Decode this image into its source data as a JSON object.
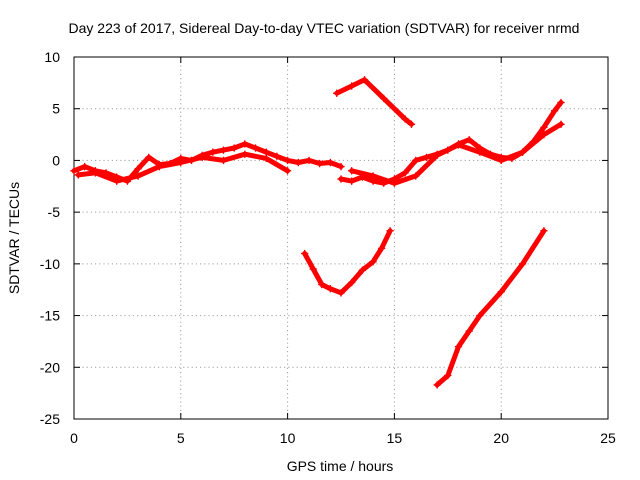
{
  "chart_data": {
    "type": "scatter",
    "title": "Day 223 of 2017, Sidereal Day-to-day VTEC variation (SDTVAR) for receiver nrmd",
    "xlabel": "GPS time / hours",
    "ylabel": "SDTVAR / TECUs",
    "xlim": [
      0,
      25
    ],
    "ylim": [
      -25,
      10
    ],
    "xticks": [
      0,
      5,
      10,
      15,
      20,
      25
    ],
    "yticks": [
      -25,
      -20,
      -15,
      -10,
      -5,
      0,
      5,
      10
    ],
    "grid": true,
    "legend": "none",
    "marker_color": "#ff0000",
    "series": [
      {
        "x": [
          0,
          0.5,
          1,
          1.5,
          2,
          2.5,
          3,
          3.5,
          4,
          4.5,
          5,
          5.5,
          6,
          6.5,
          7,
          7.5,
          8,
          8.5,
          9,
          9.5,
          10,
          10.5,
          11,
          11.5,
          12,
          12.5
        ],
        "y": [
          -1.0,
          -0.6,
          -1.0,
          -1.2,
          -1.6,
          -2.0,
          -0.8,
          0.3,
          -0.4,
          -0.3,
          0.2,
          0.0,
          0.5,
          0.8,
          1.0,
          1.2,
          1.6,
          1.2,
          0.8,
          0.4,
          0.0,
          -0.2,
          0.0,
          -0.3,
          -0.2,
          -0.6
        ]
      },
      {
        "x": [
          0.2,
          1,
          2,
          3,
          4,
          5,
          6,
          7,
          8,
          9,
          10
        ],
        "y": [
          -1.4,
          -1.2,
          -2.0,
          -1.5,
          -0.6,
          -0.2,
          0.3,
          0.0,
          0.6,
          0.2,
          -1.0
        ]
      },
      {
        "x": [
          12.3,
          13,
          13.6,
          14.5,
          15.5,
          15.8
        ],
        "y": [
          6.5,
          7.2,
          7.8,
          6.0,
          4.0,
          3.5
        ]
      },
      {
        "x": [
          12.5,
          13,
          13.5,
          14,
          14.5,
          15,
          15.5,
          16,
          16.5,
          17,
          17.5,
          18,
          18.5,
          19,
          19.5,
          20,
          20.5,
          21,
          21.5,
          22,
          22.5,
          22.8
        ],
        "y": [
          -1.8,
          -2.0,
          -1.6,
          -2.0,
          -2.2,
          -1.8,
          -1.2,
          0.0,
          0.3,
          0.6,
          1.0,
          1.6,
          2.0,
          1.2,
          0.6,
          0.3,
          0.2,
          0.8,
          1.8,
          3.2,
          4.8,
          5.6
        ]
      },
      {
        "x": [
          13,
          14,
          15,
          16,
          17,
          18,
          19,
          20,
          21,
          22,
          22.8
        ],
        "y": [
          -1.0,
          -1.5,
          -2.2,
          -1.5,
          0.5,
          1.5,
          0.8,
          0.0,
          0.8,
          2.5,
          3.5
        ]
      },
      {
        "x": [
          10.8,
          11.2,
          11.6,
          12,
          12.5,
          13,
          13.5,
          14,
          14.4,
          14.8
        ],
        "y": [
          -9.0,
          -10.5,
          -12.0,
          -12.4,
          -12.8,
          -11.8,
          -10.6,
          -9.8,
          -8.5,
          -6.8
        ]
      },
      {
        "x": [
          17,
          17.5,
          18,
          18.5,
          19,
          20,
          21,
          22
        ],
        "y": [
          -21.7,
          -20.8,
          -18.0,
          -16.5,
          -15.0,
          -12.7,
          -10.0,
          -6.8
        ]
      }
    ]
  }
}
